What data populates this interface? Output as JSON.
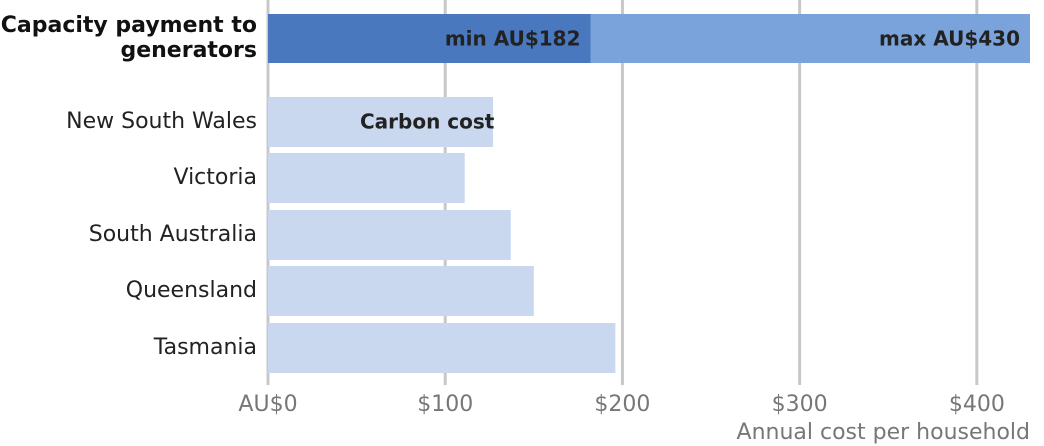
{
  "chart_data": {
    "type": "bar",
    "capacity": {
      "label_lines": [
        "Capacity payment to",
        "generators"
      ],
      "values": [
        182,
        430
      ],
      "value_labels": [
        "min AU$182",
        "max AU$430"
      ],
      "colors": [
        "#4a78bf",
        "#7aa3dc"
      ]
    },
    "annotation": "Carbon cost",
    "categories": [
      "New South Wales",
      "Victoria",
      "South Australia",
      "Queensland",
      "Tasmania"
    ],
    "values": [
      127,
      111,
      137,
      150,
      196
    ],
    "color": "#c9d7ef",
    "xlim": [
      0,
      430
    ],
    "xticks": [
      {
        "value": 0,
        "label": "AU$0"
      },
      {
        "value": 100,
        "label": "$100"
      },
      {
        "value": 200,
        "label": "$200"
      },
      {
        "value": 300,
        "label": "$300"
      },
      {
        "value": 400,
        "label": "$400"
      }
    ],
    "xlabel": "Annual cost per household",
    "grid": true
  }
}
